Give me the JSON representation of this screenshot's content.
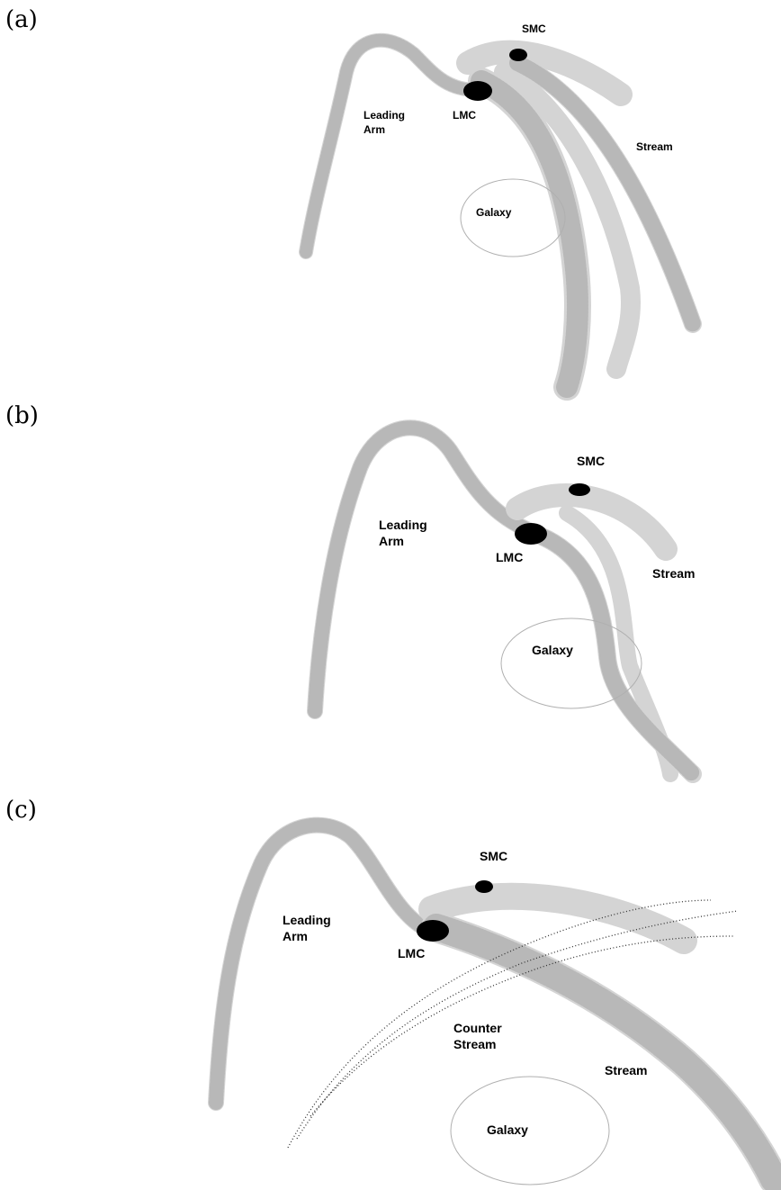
{
  "panels": [
    {
      "label": "(a)",
      "smc": "SMC",
      "lmc": "LMC",
      "leading_arm": [
        "Leading",
        "Arm"
      ],
      "stream": "Stream",
      "galaxy": "Galaxy"
    },
    {
      "label": "(b)",
      "smc": "SMC",
      "lmc": "LMC",
      "leading_arm": [
        "Leading",
        "Arm"
      ],
      "stream": "Stream",
      "galaxy": "Galaxy"
    },
    {
      "label": "(c)",
      "smc": "SMC",
      "lmc": "LMC",
      "leading_arm": [
        "Leading",
        "Arm"
      ],
      "counter_stream": [
        "Counter",
        "Stream"
      ],
      "stream": "Stream",
      "galaxy": "Galaxy"
    }
  ]
}
